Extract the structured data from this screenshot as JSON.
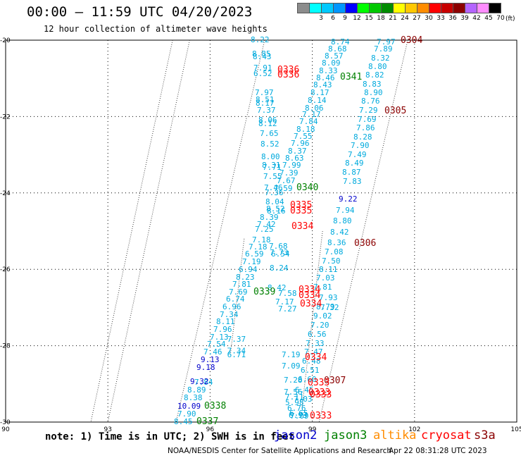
{
  "title": "00:00 – 11:59 UTC 04/20/2023",
  "subtitle": "12 hour collection of altimeter wave heights",
  "legend": {
    "swatches": [
      {
        "label": "",
        "color": "#8c8c8c"
      },
      {
        "label": "3",
        "color": "#00ffff"
      },
      {
        "label": "6",
        "color": "#00c8ff"
      },
      {
        "label": "9",
        "color": "#0096ff"
      },
      {
        "label": "12",
        "color": "#0000ff"
      },
      {
        "label": "15",
        "color": "#00ff00"
      },
      {
        "label": "18",
        "color": "#00c800"
      },
      {
        "label": "21",
        "color": "#008c00"
      },
      {
        "label": "24",
        "color": "#ffff00"
      },
      {
        "label": "27",
        "color": "#ffc800"
      },
      {
        "label": "30",
        "color": "#ff8c00"
      },
      {
        "label": "33",
        "color": "#ff0000"
      },
      {
        "label": "36",
        "color": "#c80000"
      },
      {
        "label": "39",
        "color": "#8c0000"
      },
      {
        "label": "42",
        "color": "#b464ff"
      },
      {
        "label": "45",
        "color": "#ff8cff"
      },
      {
        "label": "70",
        "color": "#000000"
      }
    ],
    "unit": "(ft)"
  },
  "note": "note: 1) Time is in UTC; 2) SWH is in feet",
  "satellites": [
    {
      "name": "jason2",
      "color": "#0000cc"
    },
    {
      "name": "jason3",
      "color": "#008000"
    },
    {
      "name": "altika",
      "color": "#ff8c00"
    },
    {
      "name": "cryosat",
      "color": "#ff0000"
    },
    {
      "name": "s3a",
      "color": "#8b0000"
    }
  ],
  "footer_left": "NOAA/NESDIS Center for Satellite Applications and Research",
  "footer_right": "Apr 22 08:31:28 UTC 2023",
  "map": {
    "lon_range": [
      90,
      105
    ],
    "lat_range": [
      -30,
      -20
    ],
    "x_ticks": [
      "90",
      "93",
      "96",
      "99",
      "102",
      "105"
    ],
    "y_ticks": [
      "-20",
      "-22",
      "-24",
      "-26",
      "-28",
      "-30"
    ]
  },
  "observations": [
    {
      "lon": 94.6,
      "lat": -20.0,
      "text": "8.22",
      "color": "#00aadd"
    },
    {
      "lon": 94.6,
      "lat": -20.4,
      "text": "8.85",
      "color": "#00aadd"
    },
    {
      "lon": 94.6,
      "lat": -20.5,
      "text": "8.43",
      "color": "#00aadd"
    },
    {
      "lon": 94.6,
      "lat": -20.8,
      "text": "7.91",
      "color": "#00aadd"
    },
    {
      "lon": 94.6,
      "lat": -20.9,
      "text": "6.52",
      "color": "#00aadd"
    },
    {
      "lon": 94.6,
      "lat": -21.5,
      "text": "7.97",
      "color": "#00aadd"
    },
    {
      "lon": 94.6,
      "lat": -21.6,
      "text": "8.51",
      "color": "#00aadd"
    },
    {
      "lon": 94.6,
      "lat": -21.7,
      "text": "8.17",
      "color": "#00aadd"
    },
    {
      "lon": 94.6,
      "lat": -21.9,
      "text": "7.37",
      "color": "#00aadd"
    },
    {
      "lon": 94.6,
      "lat": -22.2,
      "text": "8.06",
      "color": "#00aadd"
    },
    {
      "lon": 94.6,
      "lat": -22.3,
      "text": "8.12",
      "color": "#00aadd"
    },
    {
      "lon": 94.6,
      "lat": -22.6,
      "text": "7.65",
      "color": "#00aadd"
    },
    {
      "lon": 94.6,
      "lat": -22.9,
      "text": "8.52",
      "color": "#00aadd"
    },
    {
      "lon": 94.6,
      "lat": -23.3,
      "text": "8.00",
      "color": "#00aadd"
    },
    {
      "lon": 94.6,
      "lat": -23.5,
      "text": "8.31",
      "color": "#00aadd"
    },
    {
      "lon": 94.6,
      "lat": -23.6,
      "text": "7.71",
      "color": "#00aadd"
    },
    {
      "lon": 94.6,
      "lat": -23.8,
      "text": "7.55",
      "color": "#00aadd"
    },
    {
      "lon": 94.6,
      "lat": -24.0,
      "text": "7.46",
      "color": "#00aadd"
    },
    {
      "lon": 94.6,
      "lat": -24.1,
      "text": "7.36",
      "color": "#00aadd"
    },
    {
      "lon": 94.6,
      "lat": -24.3,
      "text": "8.04",
      "color": "#00aadd"
    },
    {
      "lon": 94.6,
      "lat": -24.4,
      "text": "8.52",
      "color": "#00aadd"
    },
    {
      "lon": 94.6,
      "lat": -24.5,
      "text": "8.16",
      "color": "#00aadd"
    },
    {
      "lon": 94.6,
      "lat": -24.7,
      "text": "8.39",
      "color": "#00aadd"
    },
    {
      "lon": 94.6,
      "lat": -24.9,
      "text": "7.42",
      "color": "#00aadd"
    },
    {
      "lon": 94.6,
      "lat": -25.0,
      "text": "7.25",
      "color": "#00aadd"
    },
    {
      "lon": 94.6,
      "lat": -25.2,
      "text": "7.18",
      "color": "#00aadd"
    },
    {
      "lon": 94.6,
      "lat": -25.4,
      "text": "7.18",
      "color": "#00aadd"
    },
    {
      "lon": 94.6,
      "lat": -25.6,
      "text": "6.59",
      "color": "#00aadd"
    },
    {
      "lon": 94.6,
      "lat": -25.8,
      "text": "7.19",
      "color": "#00aadd"
    },
    {
      "lon": 94.6,
      "lat": -26.0,
      "text": "6.94",
      "color": "#00aadd"
    },
    {
      "lon": 94.6,
      "lat": -26.2,
      "text": "8.23",
      "color": "#00aadd"
    },
    {
      "lon": 94.6,
      "lat": -26.4,
      "text": "7.81",
      "color": "#00aadd"
    },
    {
      "lon": 94.6,
      "lat": -26.6,
      "text": "7.69",
      "color": "#00aadd"
    },
    {
      "lon": 94.6,
      "lat": -26.8,
      "text": "6.74",
      "color": "#00aadd"
    },
    {
      "lon": 94.6,
      "lat": -27.0,
      "text": "6.96",
      "color": "#00aadd"
    },
    {
      "lon": 94.6,
      "lat": -27.2,
      "text": "7.34",
      "color": "#00aadd"
    },
    {
      "lon": 94.6,
      "lat": -27.4,
      "text": "8.11",
      "color": "#00aadd"
    },
    {
      "lon": 94.6,
      "lat": -27.6,
      "text": "7.96",
      "color": "#00aadd"
    },
    {
      "lon": 94.6,
      "lat": -27.8,
      "text": "7.13",
      "color": "#00aadd"
    },
    {
      "lon": 94.6,
      "lat": -28.0,
      "text": "7.54",
      "color": "#00aadd"
    },
    {
      "lon": 94.6,
      "lat": -28.2,
      "text": "7.46",
      "color": "#00aadd"
    },
    {
      "lon": 94.6,
      "lat": -28.4,
      "text": "9.13",
      "color": "#0000cc"
    },
    {
      "lon": 94.6,
      "lat": -28.6,
      "text": "9.18",
      "color": "#0000cc"
    },
    {
      "lon": 94.6,
      "lat": -28.8,
      "text": "7.84",
      "color": "#00aadd"
    },
    {
      "lon": 94.6,
      "lat": -29.0,
      "text": "9.32",
      "color": "#0000cc"
    },
    {
      "lon": 94.6,
      "lat": -29.2,
      "text": "8.89",
      "color": "#00aadd"
    },
    {
      "lon": 94.6,
      "lat": -29.4,
      "text": "8.38",
      "color": "#00aadd"
    },
    {
      "lon": 94.6,
      "lat": -29.6,
      "text": "10.09",
      "color": "#0000cc"
    },
    {
      "lon": 94.6,
      "lat": -29.8,
      "text": "7.90",
      "color": "#00aadd"
    },
    {
      "lon": 94.6,
      "lat": -30.0,
      "text": "8.45",
      "color": "#00aadd"
    },
    {
      "lon": 99.4,
      "lat": -20.0,
      "text": "8.74",
      "color": "#00aadd"
    },
    {
      "lon": 99.4,
      "lat": -20.2,
      "text": "8.68",
      "color": "#00aadd"
    },
    {
      "lon": 99.4,
      "lat": -20.4,
      "text": "8.57",
      "color": "#00aadd"
    },
    {
      "lon": 99.4,
      "lat": -20.6,
      "text": "8.09",
      "color": "#00aadd"
    },
    {
      "lon": 99.4,
      "lat": -20.8,
      "text": "8.33",
      "color": "#00aadd"
    },
    {
      "lon": 99.4,
      "lat": -21.0,
      "text": "8.46",
      "color": "#00aadd"
    },
    {
      "lon": 99.4,
      "lat": -21.2,
      "text": "8.43",
      "color": "#00aadd"
    },
    {
      "lon": 99.4,
      "lat": -21.4,
      "text": "8.17",
      "color": "#00aadd"
    },
    {
      "lon": 99.4,
      "lat": -21.6,
      "text": "8.14",
      "color": "#00aadd"
    },
    {
      "lon": 99.4,
      "lat": -21.8,
      "text": "8.06",
      "color": "#00aadd"
    },
    {
      "lon": 99.4,
      "lat": -22.0,
      "text": "7.17",
      "color": "#00aadd"
    },
    {
      "lon": 99.4,
      "lat": -22.2,
      "text": "7.84",
      "color": "#00aadd"
    },
    {
      "lon": 99.4,
      "lat": -22.4,
      "text": "8.18",
      "color": "#00aadd"
    },
    {
      "lon": 99.4,
      "lat": -22.6,
      "text": "7.55",
      "color": "#00aadd"
    },
    {
      "lon": 99.4,
      "lat": -22.8,
      "text": "7.96",
      "color": "#00aadd"
    },
    {
      "lon": 99.4,
      "lat": -23.0,
      "text": "8.37",
      "color": "#00aadd"
    },
    {
      "lon": 99.4,
      "lat": -23.2,
      "text": "8.63",
      "color": "#00aadd"
    },
    {
      "lon": 99.4,
      "lat": -23.4,
      "text": "7.99",
      "color": "#00aadd"
    },
    {
      "lon": 99.4,
      "lat": -23.6,
      "text": "7.39",
      "color": "#00aadd"
    },
    {
      "lon": 99.4,
      "lat": -23.8,
      "text": "7.67",
      "color": "#00aadd"
    },
    {
      "lon": 99.4,
      "lat": -24.0,
      "text": "7.59",
      "color": "#00aadd"
    },
    {
      "lon": 99.4,
      "lat": -20.0,
      "text": "7.97",
      "color": "#00aadd"
    },
    {
      "lon": 99.4,
      "lat": -20.2,
      "text": "7.89",
      "color": "#00aadd"
    },
    {
      "lon": 99.4,
      "lat": -20.4,
      "text": "8.32",
      "color": "#00aadd"
    },
    {
      "lon": 99.4,
      "lat": -20.6,
      "text": "8.80",
      "color": "#00aadd"
    },
    {
      "lon": 99.4,
      "lat": -20.8,
      "text": "8.82",
      "color": "#00aadd"
    },
    {
      "lon": 99.4,
      "lat": -21.0,
      "text": "8.83",
      "color": "#00aadd"
    },
    {
      "lon": 99.4,
      "lat": -21.2,
      "text": "8.90",
      "color": "#00aadd"
    },
    {
      "lon": 99.4,
      "lat": -21.4,
      "text": "8.76",
      "color": "#00aadd"
    },
    {
      "lon": 99.4,
      "lat": -21.6,
      "text": "7.29",
      "color": "#00aadd"
    },
    {
      "lon": 99.4,
      "lat": -21.8,
      "text": "7.69",
      "color": "#00aadd"
    },
    {
      "lon": 99.4,
      "lat": -22.0,
      "text": "7.86",
      "color": "#00aadd"
    },
    {
      "lon": 99.4,
      "lat": -22.2,
      "text": "8.28",
      "color": "#00aadd"
    },
    {
      "lon": 99.4,
      "lat": -22.4,
      "text": "7.90",
      "color": "#00aadd"
    },
    {
      "lon": 99.4,
      "lat": -22.6,
      "text": "7.49",
      "color": "#00aadd"
    },
    {
      "lon": 99.4,
      "lat": -22.8,
      "text": "8.49",
      "color": "#00aadd"
    },
    {
      "lon": 99.4,
      "lat": -23.0,
      "text": "8.87",
      "color": "#00aadd"
    },
    {
      "lon": 99.4,
      "lat": -23.2,
      "text": "7.83",
      "color": "#00aadd"
    },
    {
      "lon": 99.4,
      "lat": -23.4,
      "text": "9.22",
      "color": "#0000cc"
    },
    {
      "lon": 99.4,
      "lat": -23.6,
      "text": "7.94",
      "color": "#00aadd"
    },
    {
      "lon": 99.4,
      "lat": -23.8,
      "text": "8.80",
      "color": "#00aadd"
    },
    {
      "lon": 99.4,
      "lat": -24.0,
      "text": "8.42",
      "color": "#00aadd"
    },
    {
      "lon": 99.4,
      "lat": -24.2,
      "text": "8.36",
      "color": "#00aadd"
    },
    {
      "lon": 99.4,
      "lat": -24.4,
      "text": "7.08",
      "color": "#00aadd"
    },
    {
      "lon": 99.4,
      "lat": -24.6,
      "text": "7.50",
      "color": "#00aadd"
    },
    {
      "lon": 99.4,
      "lat": -24.8,
      "text": "8.11",
      "color": "#00aadd"
    },
    {
      "lon": 99.4,
      "lat": -25.0,
      "text": "7.03",
      "color": "#00aadd"
    },
    {
      "lon": 99.4,
      "lat": -25.2,
      "text": "7.81",
      "color": "#00aadd"
    },
    {
      "lon": 99.4,
      "lat": -25.4,
      "text": "7.93",
      "color": "#00aadd"
    },
    {
      "lon": 99.4,
      "lat": -25.6,
      "text": "8.79",
      "color": "#00aadd"
    },
    {
      "lon": 99.4,
      "lat": -25.8,
      "text": "9.02",
      "color": "#00aadd"
    },
    {
      "lon": 99.4,
      "lat": -26.0,
      "text": "7.20",
      "color": "#00aadd"
    },
    {
      "lon": 99.4,
      "lat": -26.2,
      "text": "6.56",
      "color": "#00aadd"
    },
    {
      "lon": 99.4,
      "lat": -26.4,
      "text": "7.33",
      "color": "#00aadd"
    },
    {
      "lon": 99.4,
      "lat": -26.6,
      "text": "7.47",
      "color": "#00aadd"
    },
    {
      "lon": 99.4,
      "lat": -26.8,
      "text": "6.48",
      "color": "#00aadd"
    },
    {
      "lon": 99.4,
      "lat": -27.0,
      "text": "6.51",
      "color": "#00aadd"
    },
    {
      "lon": 99.4,
      "lat": -27.2,
      "text": "6.60",
      "color": "#00aadd"
    },
    {
      "lon": 99.4,
      "lat": -27.4,
      "text": "6.45",
      "color": "#00aadd"
    },
    {
      "lon": 99.4,
      "lat": -27.6,
      "text": "7.03",
      "color": "#00aadd"
    },
    {
      "lon": 99.4,
      "lat": -27.8,
      "text": "7.68",
      "color": "#00aadd"
    },
    {
      "lon": 99.4,
      "lat": -28.0,
      "text": "7.73",
      "color": "#00aadd"
    },
    {
      "lon": 99.4,
      "lat": -28.2,
      "text": "6.54",
      "color": "#00aadd"
    },
    {
      "lon": 96.5,
      "lat": -24.5,
      "text": "8.24",
      "color": "#00aadd"
    },
    {
      "lon": 96.5,
      "lat": -24.7,
      "text": "8.42",
      "color": "#00aadd"
    },
    {
      "lon": 96.5,
      "lat": -24.8,
      "text": "7.58",
      "color": "#00aadd"
    },
    {
      "lon": 96.5,
      "lat": -25.2,
      "text": "7.17",
      "color": "#00aadd"
    },
    {
      "lon": 96.5,
      "lat": -25.3,
      "text": "7.27",
      "color": "#00aadd"
    },
    {
      "lon": 96.5,
      "lat": -25.4,
      "text": "7.32",
      "color": "#00aadd"
    },
    {
      "lon": 96.5,
      "lat": -25.6,
      "text": "7.19",
      "color": "#00aadd"
    },
    {
      "lon": 96.5,
      "lat": -25.8,
      "text": "7.09",
      "color": "#00aadd"
    },
    {
      "lon": 96.5,
      "lat": -26.0,
      "text": "7.28",
      "color": "#00aadd"
    },
    {
      "lon": 96.5,
      "lat": -26.4,
      "text": "7.56",
      "color": "#00aadd"
    },
    {
      "lon": 96.5,
      "lat": -26.8,
      "text": "7.11",
      "color": "#00aadd"
    },
    {
      "lon": 96.5,
      "lat": -27.1,
      "text": "5.98",
      "color": "#00aadd"
    },
    {
      "lon": 96.5,
      "lat": -27.4,
      "text": "6.76",
      "color": "#00aadd"
    },
    {
      "lon": 96.5,
      "lat": -27.6,
      "text": "6.65",
      "color": "#00aadd"
    },
    {
      "lon": 96.5,
      "lat": -27.7,
      "text": "6.93",
      "color": "#00aadd"
    },
    {
      "lon": 96.5,
      "lat": -27.8,
      "text": "7.09",
      "color": "#00aadd"
    },
    {
      "lon": 96.5,
      "lat": -27.9,
      "text": "7.37",
      "color": "#00aadd"
    },
    {
      "lon": 96.5,
      "lat": -28.2,
      "text": "7.34",
      "color": "#00aadd"
    },
    {
      "lon": 96.5,
      "lat": -28.3,
      "text": "6.71",
      "color": "#00aadd"
    }
  ],
  "pass_labels": [
    {
      "text": "0304",
      "color": "#8b0000"
    },
    {
      "text": "0305",
      "color": "#8b0000"
    },
    {
      "text": "0306",
      "color": "#8b0000"
    },
    {
      "text": "0307",
      "color": "#8b0000"
    },
    {
      "text": "0336",
      "color": "#ff0000"
    },
    {
      "text": "0336",
      "color": "#ff0000"
    },
    {
      "text": "0341",
      "color": "#008000"
    },
    {
      "text": "0340",
      "color": "#008000"
    },
    {
      "text": "0335",
      "color": "#ff0000"
    },
    {
      "text": "0335",
      "color": "#ff0000"
    },
    {
      "text": "0334",
      "color": "#ff0000"
    },
    {
      "text": "0339",
      "color": "#008000"
    },
    {
      "text": "0334",
      "color": "#ff0000"
    },
    {
      "text": "0334",
      "color": "#ff0000"
    },
    {
      "text": "0334",
      "color": "#ff0000"
    },
    {
      "text": "0334",
      "color": "#ff0000"
    },
    {
      "text": "0333",
      "color": "#ff0000"
    },
    {
      "text": "0333",
      "color": "#ff0000"
    },
    {
      "text": "0333",
      "color": "#ff0000"
    },
    {
      "text": "0333",
      "color": "#ff0000"
    },
    {
      "text": "0338",
      "color": "#008000"
    },
    {
      "text": "0337",
      "color": "#008000"
    }
  ]
}
